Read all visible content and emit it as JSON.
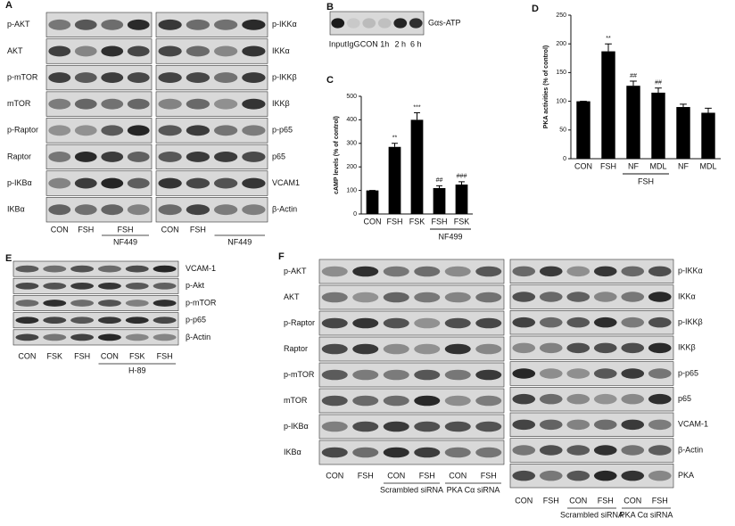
{
  "panels": {
    "A": {
      "letter": "A",
      "left": {
        "rows": [
          "p-AKT",
          "AKT",
          "p-mTOR",
          "mTOR",
          "p-Raptor",
          "Raptor",
          "p-IKBα",
          "IKBα"
        ],
        "lanes": [
          "CON",
          "FSH",
          "FSH"
        ],
        "groups": [
          "NF449"
        ]
      },
      "right": {
        "rows": [
          "p-IKKα",
          "IKKα",
          "p-IKKβ",
          "IKKβ",
          "p-p65",
          "p65",
          "VCAM1",
          "β-Actin"
        ],
        "lanes": [
          "CON",
          "FSH"
        ],
        "groups": [
          "NF449"
        ]
      }
    },
    "B": {
      "letter": "B",
      "blot": {
        "rows": [
          "Gαs-ATP"
        ],
        "lanes": [
          "Input",
          "IgG",
          "CON",
          "1h",
          "2 h",
          "6 h"
        ],
        "groups": []
      }
    },
    "E": {
      "letter": "E",
      "blot": {
        "rows": [
          "VCAM-1",
          "p-Akt",
          "p-mTOR",
          "p-p65",
          "β-Actin"
        ],
        "lanes": [
          "CON",
          "FSK",
          "FSH",
          "CON",
          "FSK",
          "FSH"
        ],
        "groups": [
          "H-89"
        ]
      }
    },
    "F": {
      "letter": "F",
      "left": {
        "rows": [
          "p-AKT",
          "AKT",
          "p-Raptor",
          "Raptor",
          "p-mTOR",
          "mTOR",
          "p-IKBα",
          "IKBα"
        ],
        "lanes": [
          "CON",
          "FSH",
          "CON",
          "FSH",
          "CON",
          "FSH"
        ],
        "groups": [
          "Scrambled siRNA",
          "PKA Cα  siRNA"
        ]
      },
      "right": {
        "rows": [
          "p-IKKα",
          "IKKα",
          "p-IKKβ",
          "IKKβ",
          "p-p65",
          "p65",
          "VCAM-1",
          "β-Actin",
          "PKA"
        ],
        "lanes": [
          "CON",
          "FSH",
          "CON",
          "FSH",
          "CON",
          "FSH"
        ],
        "groups": [
          "Scrambled siRNA",
          "PKA Cα  siRNA"
        ]
      }
    }
  },
  "chart_data": [
    {
      "type": "bar",
      "panel": "C",
      "y_label": "cAMP levels (% of control)",
      "categories": [
        "CON",
        "FSH",
        "FSK",
        "FSH",
        "FSK"
      ],
      "values": [
        100,
        285,
        400,
        110,
        125
      ],
      "errors": [
        0,
        15,
        30,
        10,
        12
      ],
      "annotations": [
        null,
        "**",
        "***",
        "##",
        "###"
      ],
      "group_label": "NF499",
      "color": "#000000",
      "ylim": [
        0,
        500
      ],
      "yticks": [
        0,
        100,
        200,
        300,
        400,
        500
      ]
    },
    {
      "type": "bar",
      "panel": "D",
      "y_label": "PKA activities (% of control)",
      "categories": [
        "CON",
        "FSH",
        "NF",
        "MDL",
        "NF",
        "MDL"
      ],
      "values": [
        100,
        187,
        127,
        115,
        90,
        80
      ],
      "errors": [
        0,
        13,
        8,
        8,
        5,
        8
      ],
      "annotations": [
        null,
        "**",
        "##",
        "##",
        null,
        null
      ],
      "group_label": "FSH",
      "color": "#000000",
      "ylim": [
        0,
        250
      ],
      "yticks": [
        0,
        50,
        100,
        150,
        200,
        250
      ]
    }
  ]
}
